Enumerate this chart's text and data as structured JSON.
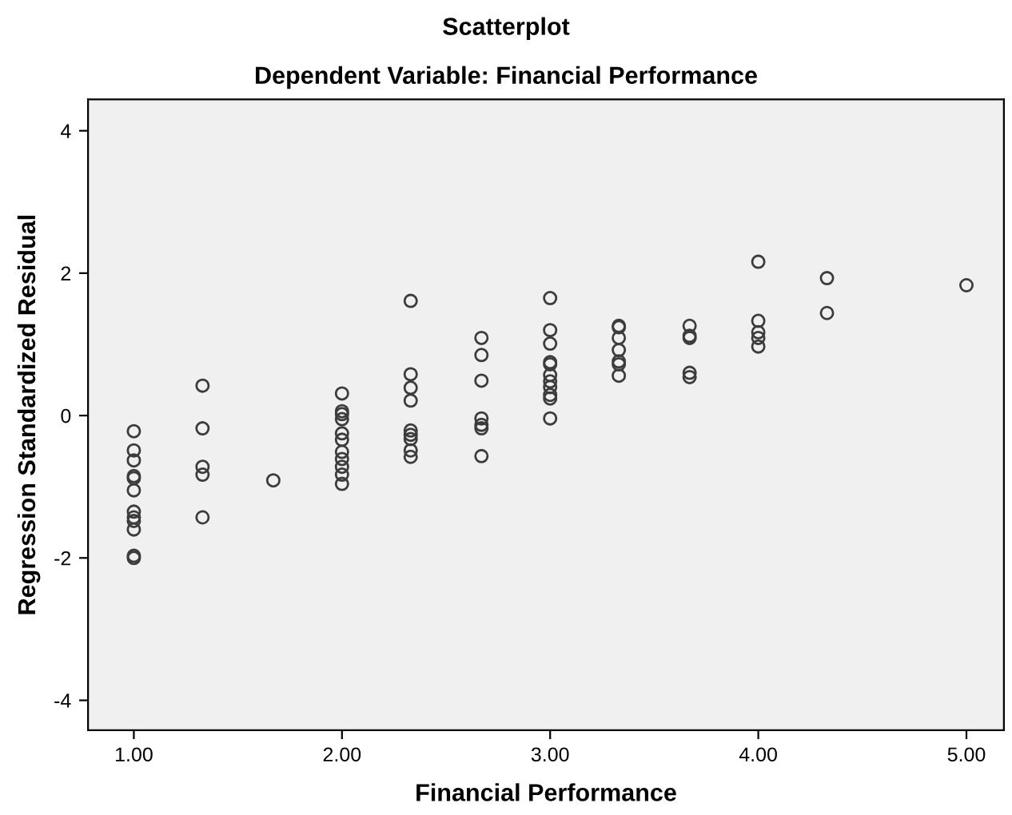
{
  "chart_data": {
    "type": "scatter",
    "title": "Scatterplot",
    "subtitle": "Dependent Variable: Financial Performance",
    "xlabel": "Financial Performance",
    "ylabel": "Regression Standardized Residual",
    "xlim": [
      0.78,
      5.18
    ],
    "ylim": [
      -4.42,
      4.44
    ],
    "xticks": [
      {
        "value": 1,
        "label": "1.00"
      },
      {
        "value": 2,
        "label": "2.00"
      },
      {
        "value": 3,
        "label": "3.00"
      },
      {
        "value": 4,
        "label": "4.00"
      },
      {
        "value": 5,
        "label": "5.00"
      }
    ],
    "yticks": [
      -4,
      -2,
      0,
      2,
      4
    ],
    "grid": false,
    "legend": false,
    "marker": "circle",
    "series": [
      {
        "color": "#3c3c3c",
        "x": [
          1,
          1,
          1,
          1,
          1,
          1,
          1,
          1,
          1,
          1,
          1,
          1,
          1.33,
          1.33,
          1.33,
          1.33,
          1.33,
          1.67,
          2,
          2,
          2,
          2,
          2,
          2,
          2,
          2,
          2,
          2,
          2,
          2.33,
          2.33,
          2.33,
          2.33,
          2.33,
          2.33,
          2.33,
          2.33,
          2.33,
          2.67,
          2.67,
          2.67,
          2.67,
          2.67,
          2.67,
          2.67,
          3,
          3,
          3,
          3,
          3,
          3,
          3,
          3,
          3,
          3,
          3,
          3.33,
          3.33,
          3.33,
          3.33,
          3.33,
          3.33,
          3.33,
          3.67,
          3.67,
          3.67,
          3.67,
          3.67,
          4,
          4,
          4,
          4,
          4,
          4.33,
          4.33,
          5
        ],
        "values": [
          -0.22,
          -0.49,
          -0.63,
          -0.85,
          -0.88,
          -1.05,
          -1.35,
          -1.43,
          -1.48,
          -1.6,
          -1.97,
          -2.0,
          0.42,
          -0.18,
          -0.72,
          -0.83,
          -1.43,
          -0.91,
          0.31,
          0.06,
          0.02,
          -0.05,
          -0.25,
          -0.34,
          -0.51,
          -0.61,
          -0.72,
          -0.83,
          -0.96,
          1.61,
          0.58,
          0.39,
          0.21,
          -0.21,
          -0.27,
          -0.33,
          -0.49,
          -0.58,
          1.09,
          0.85,
          0.49,
          -0.04,
          -0.13,
          -0.18,
          -0.57,
          1.65,
          1.2,
          1.01,
          0.75,
          0.72,
          0.57,
          0.48,
          0.4,
          0.29,
          0.24,
          -0.04,
          1.26,
          1.24,
          1.09,
          0.92,
          0.76,
          0.72,
          0.56,
          1.26,
          1.12,
          1.09,
          0.6,
          0.54,
          2.16,
          1.33,
          1.17,
          1.09,
          0.97,
          1.93,
          1.44,
          1.83
        ]
      }
    ]
  }
}
